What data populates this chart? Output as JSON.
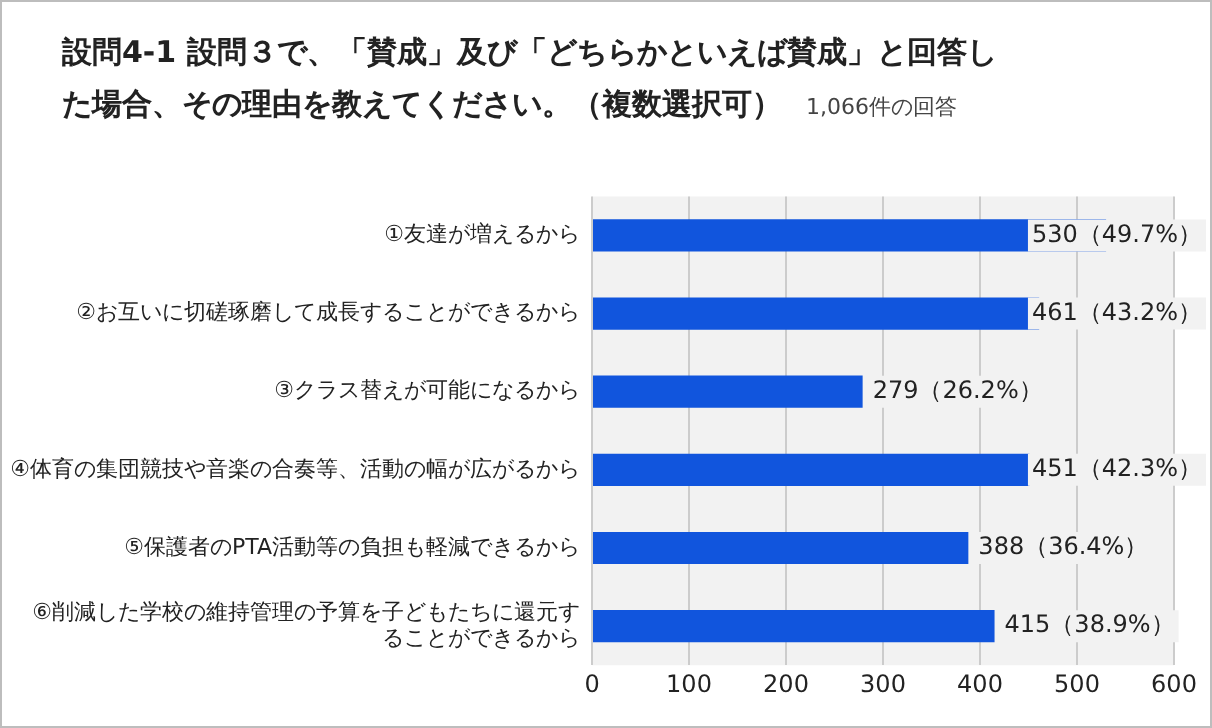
{
  "chart_data": {
    "type": "bar",
    "orientation": "horizontal",
    "title": "設問4-1 設問３で、「賛成」及び「どちらかといえば賛成」と回答した場合、その理由を教えてください。（複数選択可）",
    "subtitle": "1,066件の回答",
    "categories": [
      "①友達が増えるから",
      "②お互いに切磋琢磨して成長することができるから",
      "③クラス替えが可能になるから",
      "④体育の集団競技や音楽の合奏等、活動の幅が広がるから",
      "⑤保護者のPTA活動等の負担も軽減できるから",
      "⑥削減した学校の維持管理の予算を子どもたちに還元することができるから"
    ],
    "values": [
      530,
      461,
      279,
      451,
      388,
      415
    ],
    "value_labels": [
      "530（49.7%）",
      "461（43.2%）",
      "279（26.2%）",
      "451（42.3%）",
      "388（36.4%）",
      "415（38.9%）"
    ],
    "color": "#1155dd",
    "xlim": [
      0,
      600
    ],
    "xticks": [
      0,
      100,
      200,
      300,
      400,
      500,
      600
    ],
    "grid": "x",
    "legend": false
  }
}
